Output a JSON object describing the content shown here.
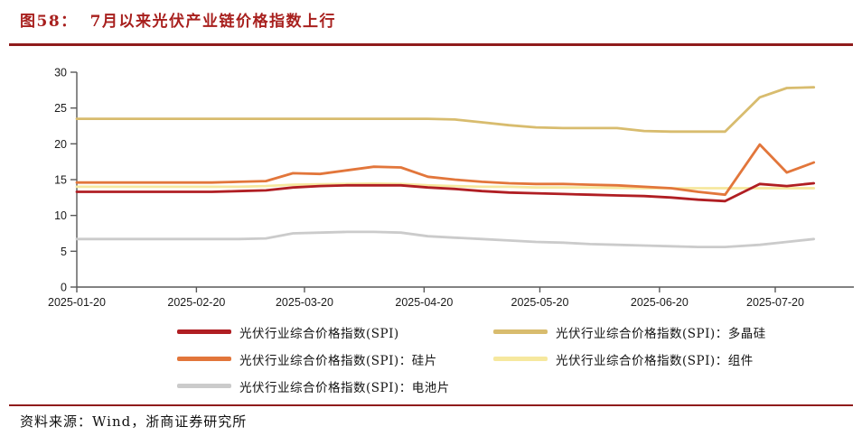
{
  "figure": {
    "label": "图58：",
    "title": "7月以来光伏产业链价格指数上行"
  },
  "source": {
    "text": "资料来源：Wind，浙商证券研究所"
  },
  "colors": {
    "title_red": "#A8201E",
    "rule_red": "#8F1B1B",
    "axis_line": "#595959"
  },
  "chart_data": {
    "type": "line",
    "title": "图58：7月以来光伏产业链价格指数上行",
    "xlabel": "",
    "ylabel": "",
    "ylim": [
      0,
      30
    ],
    "y_ticks": [
      0,
      5,
      10,
      15,
      20,
      25,
      30
    ],
    "grid": false,
    "legend_position": "bottom",
    "x_tick_labels": [
      "2025-01-20",
      "2025-02-20",
      "2025-03-20",
      "2025-04-20",
      "2025-05-20",
      "2025-06-20",
      "2025-07-20"
    ],
    "x": [
      "2025-01-20",
      "2025-01-27",
      "2025-02-03",
      "2025-02-10",
      "2025-02-17",
      "2025-02-24",
      "2025-03-03",
      "2025-03-10",
      "2025-03-17",
      "2025-03-24",
      "2025-03-31",
      "2025-04-07",
      "2025-04-14",
      "2025-04-21",
      "2025-04-28",
      "2025-05-05",
      "2025-05-12",
      "2025-05-19",
      "2025-05-26",
      "2025-06-02",
      "2025-06-09",
      "2025-06-16",
      "2025-06-23",
      "2025-06-30",
      "2025-07-07",
      "2025-07-16",
      "2025-07-23",
      "2025-07-30"
    ],
    "series": [
      {
        "key": "spi",
        "name": "光伏行业综合价格指数(SPI)",
        "color": "#B01E23",
        "values": [
          13.3,
          13.3,
          13.3,
          13.3,
          13.3,
          13.3,
          13.4,
          13.5,
          13.9,
          14.1,
          14.2,
          14.2,
          14.2,
          13.9,
          13.7,
          13.4,
          13.2,
          13.1,
          13.0,
          12.9,
          12.8,
          12.7,
          12.5,
          12.2,
          12.0,
          14.4,
          14.1,
          14.5
        ]
      },
      {
        "key": "polysilicon",
        "name": "光伏行业综合价格指数(SPI)：多晶硅",
        "color": "#D8BC6E",
        "values": [
          23.5,
          23.5,
          23.5,
          23.5,
          23.5,
          23.5,
          23.5,
          23.5,
          23.5,
          23.5,
          23.5,
          23.5,
          23.5,
          23.5,
          23.4,
          23.0,
          22.6,
          22.3,
          22.2,
          22.2,
          22.2,
          21.8,
          21.7,
          21.7,
          21.7,
          26.5,
          27.8,
          27.9
        ]
      },
      {
        "key": "wafer",
        "name": "光伏行业综合价格指数(SPI)：硅片",
        "color": "#E2763B",
        "values": [
          14.6,
          14.6,
          14.6,
          14.6,
          14.6,
          14.6,
          14.7,
          14.8,
          15.9,
          15.8,
          16.3,
          16.8,
          16.7,
          15.4,
          15.0,
          14.7,
          14.5,
          14.4,
          14.4,
          14.3,
          14.2,
          14.0,
          13.8,
          13.3,
          12.9,
          19.9,
          16.0,
          17.4
        ]
      },
      {
        "key": "module",
        "name": "光伏行业综合价格指数(SPI)：组件",
        "color": "#F6E89E",
        "values": [
          14.0,
          14.0,
          14.0,
          14.0,
          14.0,
          14.0,
          14.0,
          14.1,
          14.3,
          14.35,
          14.4,
          14.45,
          14.4,
          14.2,
          14.1,
          14.0,
          14.0,
          13.9,
          13.9,
          13.9,
          13.85,
          13.8,
          13.8,
          13.8,
          13.8,
          13.8,
          13.8,
          13.8
        ]
      },
      {
        "key": "cell",
        "name": "光伏行业综合价格指数(SPI)：电池片",
        "color": "#CBCBCB",
        "values": [
          6.7,
          6.7,
          6.7,
          6.7,
          6.7,
          6.7,
          6.7,
          6.8,
          7.5,
          7.6,
          7.7,
          7.7,
          7.6,
          7.1,
          6.9,
          6.7,
          6.5,
          6.3,
          6.2,
          6.0,
          5.9,
          5.8,
          5.7,
          5.6,
          5.6,
          5.9,
          6.3,
          6.7
        ]
      }
    ]
  }
}
